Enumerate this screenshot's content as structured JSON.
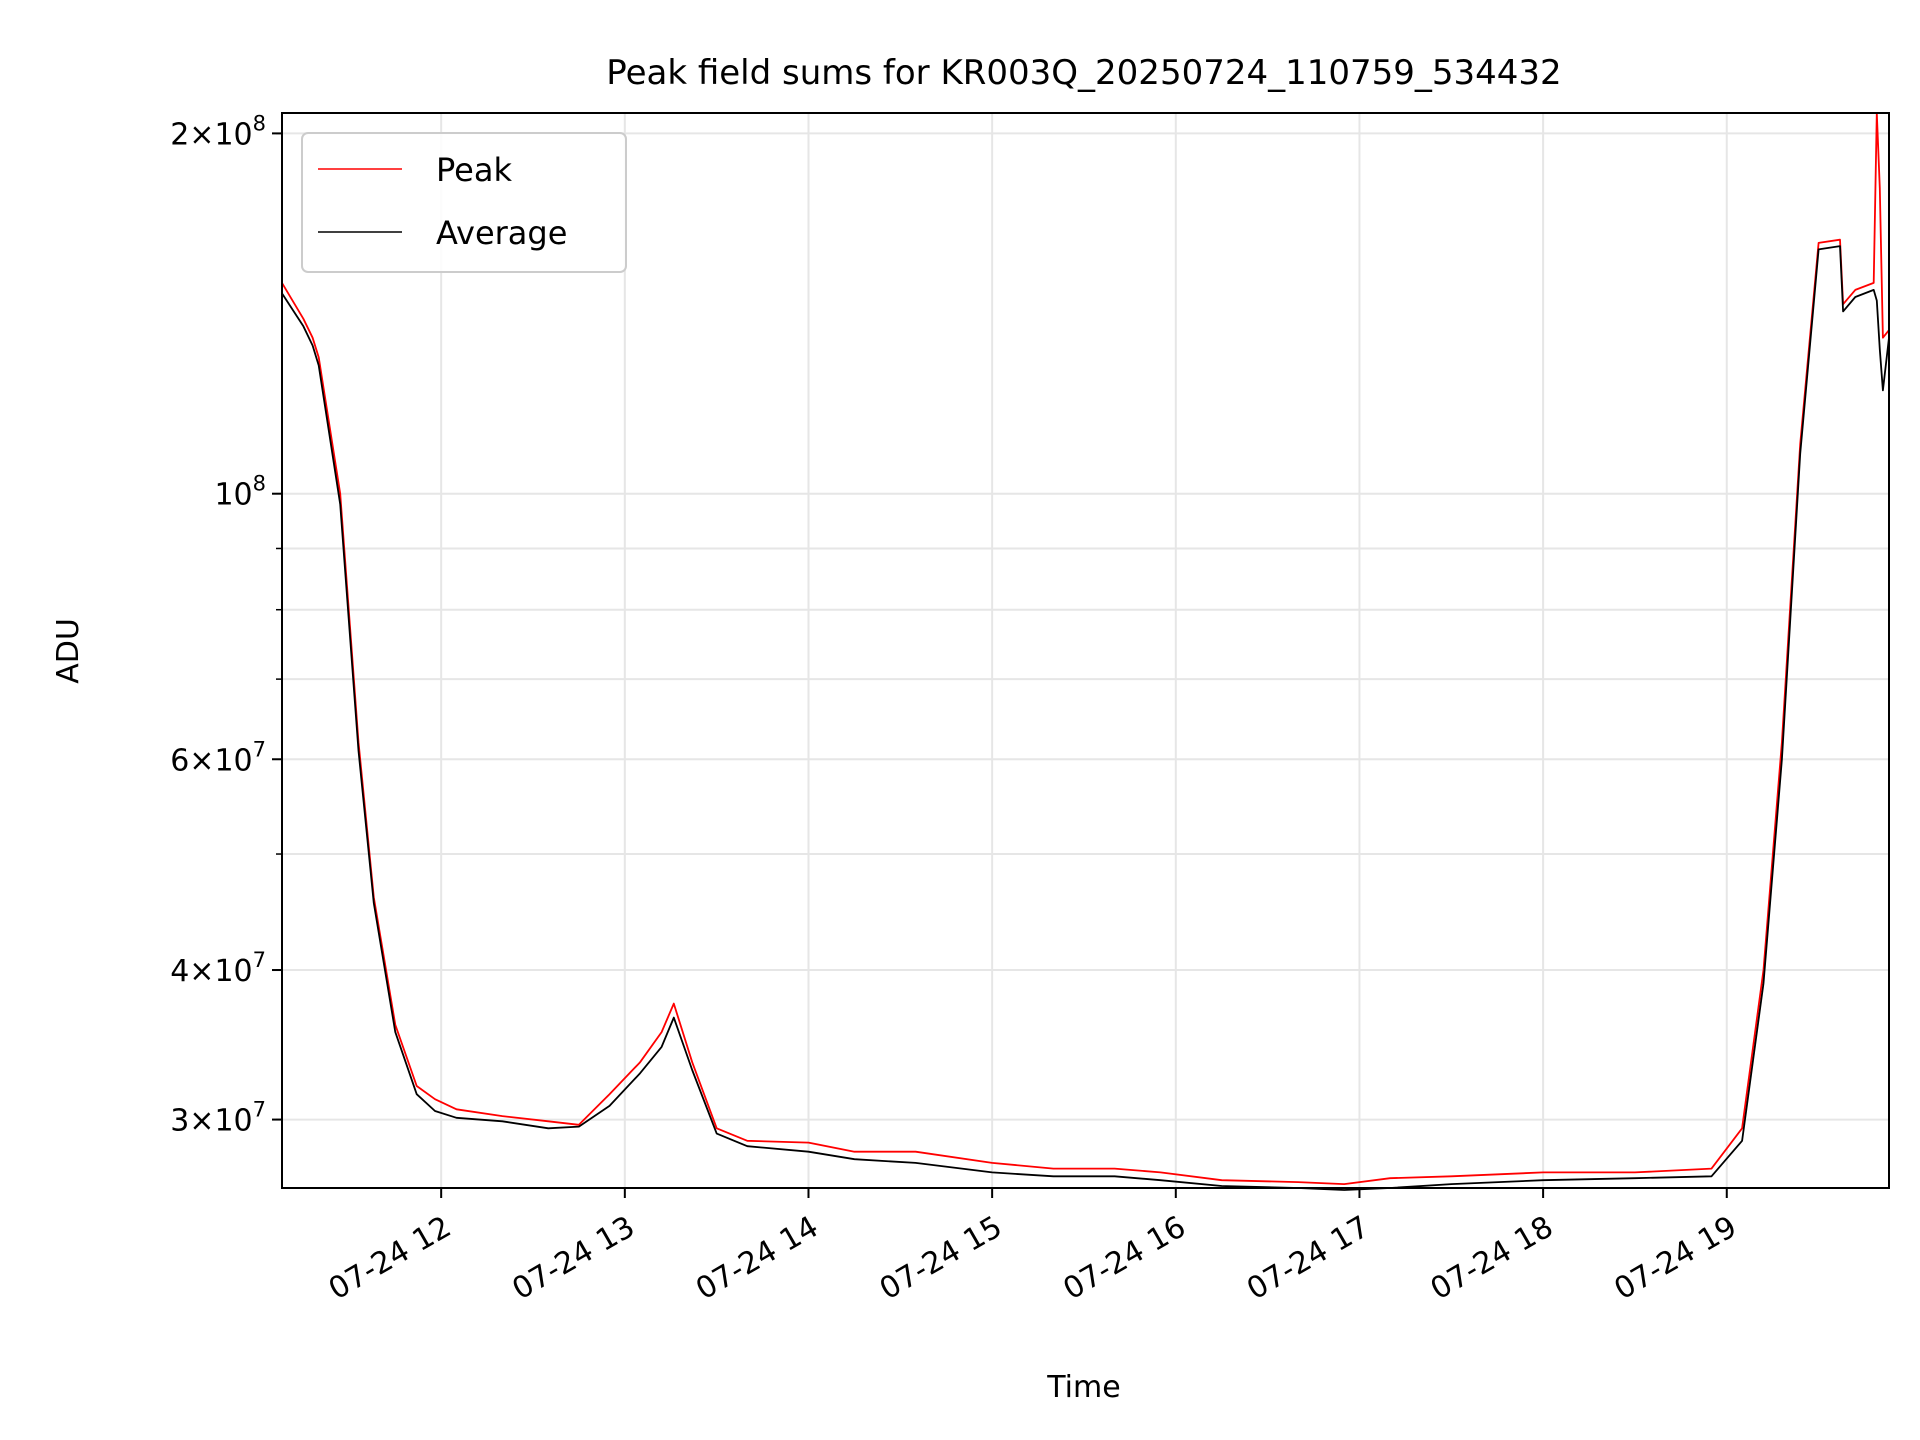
{
  "chart_data": {
    "type": "line",
    "title": "Peak field sums for KR003Q_20250724_110759_534432",
    "xlabel": "Time",
    "ylabel": "ADU",
    "yscale": "log",
    "ylim": [
      26300000,
      208000000
    ],
    "xlim": [
      "2025-07-24T11:08",
      "2025-07-24T19:53"
    ],
    "grid": true,
    "legend_position": "top-left",
    "x_ticks": [
      "07-24 12",
      "07-24 13",
      "07-24 14",
      "07-24 15",
      "07-24 16",
      "07-24 17",
      "07-24 18",
      "07-24 19"
    ],
    "y_ticks": [
      {
        "value": 30000000,
        "base": "3×10",
        "exp": "7"
      },
      {
        "value": 40000000,
        "base": "4×10",
        "exp": "7"
      },
      {
        "value": 60000000,
        "base": "6×10",
        "exp": "7"
      },
      {
        "value": 100000000,
        "base": "10",
        "exp": "8"
      },
      {
        "value": 200000000,
        "base": "2×10",
        "exp": "8"
      }
    ],
    "series": [
      {
        "name": "Peak",
        "color": "#ff0000",
        "x": [
          "2025-07-24T11:08",
          "2025-07-24T11:15",
          "2025-07-24T11:18",
          "2025-07-24T11:20",
          "2025-07-24T11:27",
          "2025-07-24T11:33",
          "2025-07-24T11:38",
          "2025-07-24T11:45",
          "2025-07-24T11:52",
          "2025-07-24T11:58",
          "2025-07-24T12:05",
          "2025-07-24T12:20",
          "2025-07-24T12:35",
          "2025-07-24T12:45",
          "2025-07-24T12:55",
          "2025-07-24T13:05",
          "2025-07-24T13:12",
          "2025-07-24T13:16",
          "2025-07-24T13:22",
          "2025-07-24T13:30",
          "2025-07-24T13:40",
          "2025-07-24T14:00",
          "2025-07-24T14:15",
          "2025-07-24T14:35",
          "2025-07-24T15:00",
          "2025-07-24T15:20",
          "2025-07-24T15:40",
          "2025-07-24T15:55",
          "2025-07-24T16:15",
          "2025-07-24T16:40",
          "2025-07-24T16:55",
          "2025-07-24T17:10",
          "2025-07-24T17:30",
          "2025-07-24T18:00",
          "2025-07-24T18:30",
          "2025-07-24T18:55",
          "2025-07-24T19:05",
          "2025-07-24T19:12",
          "2025-07-24T19:18",
          "2025-07-24T19:24",
          "2025-07-24T19:30",
          "2025-07-24T19:37",
          "2025-07-24T19:38",
          "2025-07-24T19:42",
          "2025-07-24T19:48",
          "2025-07-24T19:49",
          "2025-07-24T19:50",
          "2025-07-24T19:51",
          "2025-07-24T19:53"
        ],
        "y": [
          150000000,
          140000000,
          135000000,
          130000000,
          100000000,
          62000000,
          46000000,
          36000000,
          32000000,
          31200000,
          30600000,
          30200000,
          29900000,
          29700000,
          31500000,
          33500000,
          35500000,
          37500000,
          33500000,
          29500000,
          28800000,
          28700000,
          28200000,
          28200000,
          27600000,
          27300000,
          27300000,
          27100000,
          26700000,
          26600000,
          26500000,
          26800000,
          26900000,
          27100000,
          27100000,
          27300000,
          29500000,
          40000000,
          62000000,
          110000000,
          162000000,
          163000000,
          144000000,
          148000000,
          150000000,
          210000000,
          180000000,
          135000000,
          137000000
        ]
      },
      {
        "name": "Average",
        "color": "#000000",
        "x": [
          "2025-07-24T11:08",
          "2025-07-24T11:15",
          "2025-07-24T11:18",
          "2025-07-24T11:20",
          "2025-07-24T11:27",
          "2025-07-24T11:33",
          "2025-07-24T11:38",
          "2025-07-24T11:45",
          "2025-07-24T11:52",
          "2025-07-24T11:58",
          "2025-07-24T12:05",
          "2025-07-24T12:20",
          "2025-07-24T12:35",
          "2025-07-24T12:45",
          "2025-07-24T12:55",
          "2025-07-24T13:05",
          "2025-07-24T13:12",
          "2025-07-24T13:16",
          "2025-07-24T13:22",
          "2025-07-24T13:30",
          "2025-07-24T13:40",
          "2025-07-24T14:00",
          "2025-07-24T14:15",
          "2025-07-24T14:35",
          "2025-07-24T15:00",
          "2025-07-24T15:20",
          "2025-07-24T15:40",
          "2025-07-24T15:55",
          "2025-07-24T16:15",
          "2025-07-24T16:40",
          "2025-07-24T16:55",
          "2025-07-24T17:10",
          "2025-07-24T17:30",
          "2025-07-24T18:00",
          "2025-07-24T18:30",
          "2025-07-24T18:55",
          "2025-07-24T19:05",
          "2025-07-24T19:12",
          "2025-07-24T19:18",
          "2025-07-24T19:24",
          "2025-07-24T19:30",
          "2025-07-24T19:37",
          "2025-07-24T19:38",
          "2025-07-24T19:42",
          "2025-07-24T19:48",
          "2025-07-24T19:49",
          "2025-07-24T19:50",
          "2025-07-24T19:51",
          "2025-07-24T19:53"
        ],
        "y": [
          147000000,
          138000000,
          133000000,
          128000000,
          98000000,
          61000000,
          45500000,
          35500000,
          31500000,
          30500000,
          30100000,
          29900000,
          29500000,
          29600000,
          30800000,
          32800000,
          34500000,
          36500000,
          33000000,
          29200000,
          28500000,
          28200000,
          27800000,
          27600000,
          27100000,
          26900000,
          26900000,
          26700000,
          26400000,
          26300000,
          26200000,
          26300000,
          26500000,
          26700000,
          26800000,
          26900000,
          28800000,
          39000000,
          60000000,
          108000000,
          160000000,
          161000000,
          142000000,
          146000000,
          148000000,
          145000000,
          132000000,
          122000000,
          135000000
        ]
      }
    ]
  }
}
